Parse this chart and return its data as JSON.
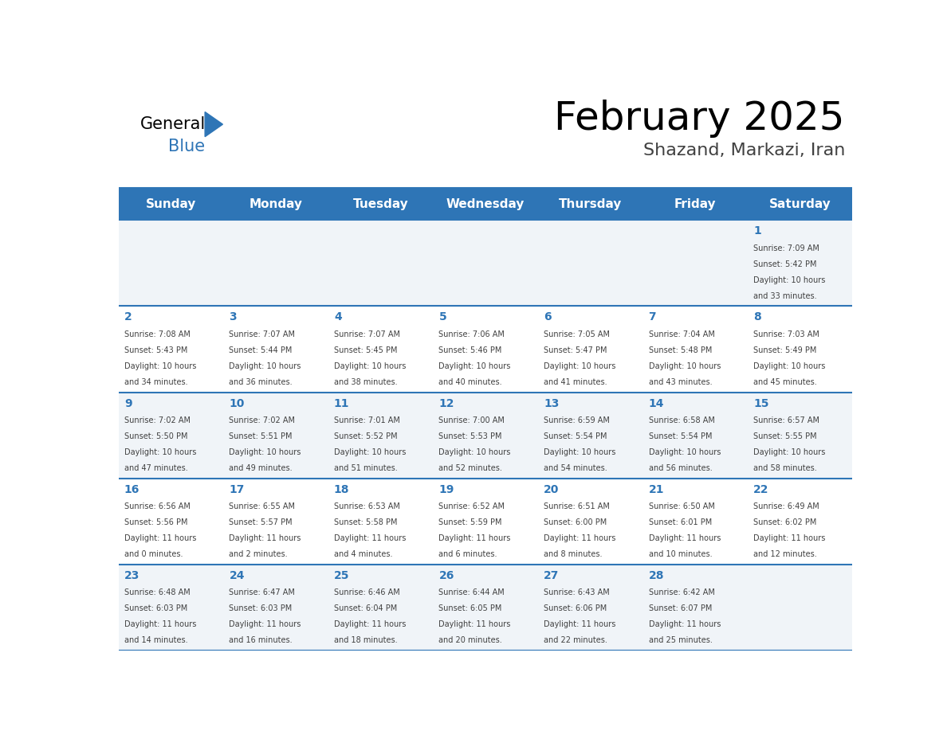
{
  "title": "February 2025",
  "subtitle": "Shazand, Markazi, Iran",
  "header_color": "#2E75B6",
  "header_text_color": "#FFFFFF",
  "background_color": "#FFFFFF",
  "light_row_color": "#F0F4F8",
  "white_row_color": "#FFFFFF",
  "days_of_week": [
    "Sunday",
    "Monday",
    "Tuesday",
    "Wednesday",
    "Thursday",
    "Friday",
    "Saturday"
  ],
  "cell_line_color": "#2E75B6",
  "day_number_color": "#2E75B6",
  "info_text_color": "#404040",
  "calendar": [
    [
      null,
      null,
      null,
      null,
      null,
      null,
      1
    ],
    [
      2,
      3,
      4,
      5,
      6,
      7,
      8
    ],
    [
      9,
      10,
      11,
      12,
      13,
      14,
      15
    ],
    [
      16,
      17,
      18,
      19,
      20,
      21,
      22
    ],
    [
      23,
      24,
      25,
      26,
      27,
      28,
      null
    ]
  ],
  "day_data": {
    "1": {
      "sunrise": "7:09 AM",
      "sunset": "5:42 PM",
      "daylight": "10 hours and 33 minutes."
    },
    "2": {
      "sunrise": "7:08 AM",
      "sunset": "5:43 PM",
      "daylight": "10 hours and 34 minutes."
    },
    "3": {
      "sunrise": "7:07 AM",
      "sunset": "5:44 PM",
      "daylight": "10 hours and 36 minutes."
    },
    "4": {
      "sunrise": "7:07 AM",
      "sunset": "5:45 PM",
      "daylight": "10 hours and 38 minutes."
    },
    "5": {
      "sunrise": "7:06 AM",
      "sunset": "5:46 PM",
      "daylight": "10 hours and 40 minutes."
    },
    "6": {
      "sunrise": "7:05 AM",
      "sunset": "5:47 PM",
      "daylight": "10 hours and 41 minutes."
    },
    "7": {
      "sunrise": "7:04 AM",
      "sunset": "5:48 PM",
      "daylight": "10 hours and 43 minutes."
    },
    "8": {
      "sunrise": "7:03 AM",
      "sunset": "5:49 PM",
      "daylight": "10 hours and 45 minutes."
    },
    "9": {
      "sunrise": "7:02 AM",
      "sunset": "5:50 PM",
      "daylight": "10 hours and 47 minutes."
    },
    "10": {
      "sunrise": "7:02 AM",
      "sunset": "5:51 PM",
      "daylight": "10 hours and 49 minutes."
    },
    "11": {
      "sunrise": "7:01 AM",
      "sunset": "5:52 PM",
      "daylight": "10 hours and 51 minutes."
    },
    "12": {
      "sunrise": "7:00 AM",
      "sunset": "5:53 PM",
      "daylight": "10 hours and 52 minutes."
    },
    "13": {
      "sunrise": "6:59 AM",
      "sunset": "5:54 PM",
      "daylight": "10 hours and 54 minutes."
    },
    "14": {
      "sunrise": "6:58 AM",
      "sunset": "5:54 PM",
      "daylight": "10 hours and 56 minutes."
    },
    "15": {
      "sunrise": "6:57 AM",
      "sunset": "5:55 PM",
      "daylight": "10 hours and 58 minutes."
    },
    "16": {
      "sunrise": "6:56 AM",
      "sunset": "5:56 PM",
      "daylight": "11 hours and 0 minutes."
    },
    "17": {
      "sunrise": "6:55 AM",
      "sunset": "5:57 PM",
      "daylight": "11 hours and 2 minutes."
    },
    "18": {
      "sunrise": "6:53 AM",
      "sunset": "5:58 PM",
      "daylight": "11 hours and 4 minutes."
    },
    "19": {
      "sunrise": "6:52 AM",
      "sunset": "5:59 PM",
      "daylight": "11 hours and 6 minutes."
    },
    "20": {
      "sunrise": "6:51 AM",
      "sunset": "6:00 PM",
      "daylight": "11 hours and 8 minutes."
    },
    "21": {
      "sunrise": "6:50 AM",
      "sunset": "6:01 PM",
      "daylight": "11 hours and 10 minutes."
    },
    "22": {
      "sunrise": "6:49 AM",
      "sunset": "6:02 PM",
      "daylight": "11 hours and 12 minutes."
    },
    "23": {
      "sunrise": "6:48 AM",
      "sunset": "6:03 PM",
      "daylight": "11 hours and 14 minutes."
    },
    "24": {
      "sunrise": "6:47 AM",
      "sunset": "6:03 PM",
      "daylight": "11 hours and 16 minutes."
    },
    "25": {
      "sunrise": "6:46 AM",
      "sunset": "6:04 PM",
      "daylight": "11 hours and 18 minutes."
    },
    "26": {
      "sunrise": "6:44 AM",
      "sunset": "6:05 PM",
      "daylight": "11 hours and 20 minutes."
    },
    "27": {
      "sunrise": "6:43 AM",
      "sunset": "6:06 PM",
      "daylight": "11 hours and 22 minutes."
    },
    "28": {
      "sunrise": "6:42 AM",
      "sunset": "6:07 PM",
      "daylight": "11 hours and 25 minutes."
    }
  }
}
